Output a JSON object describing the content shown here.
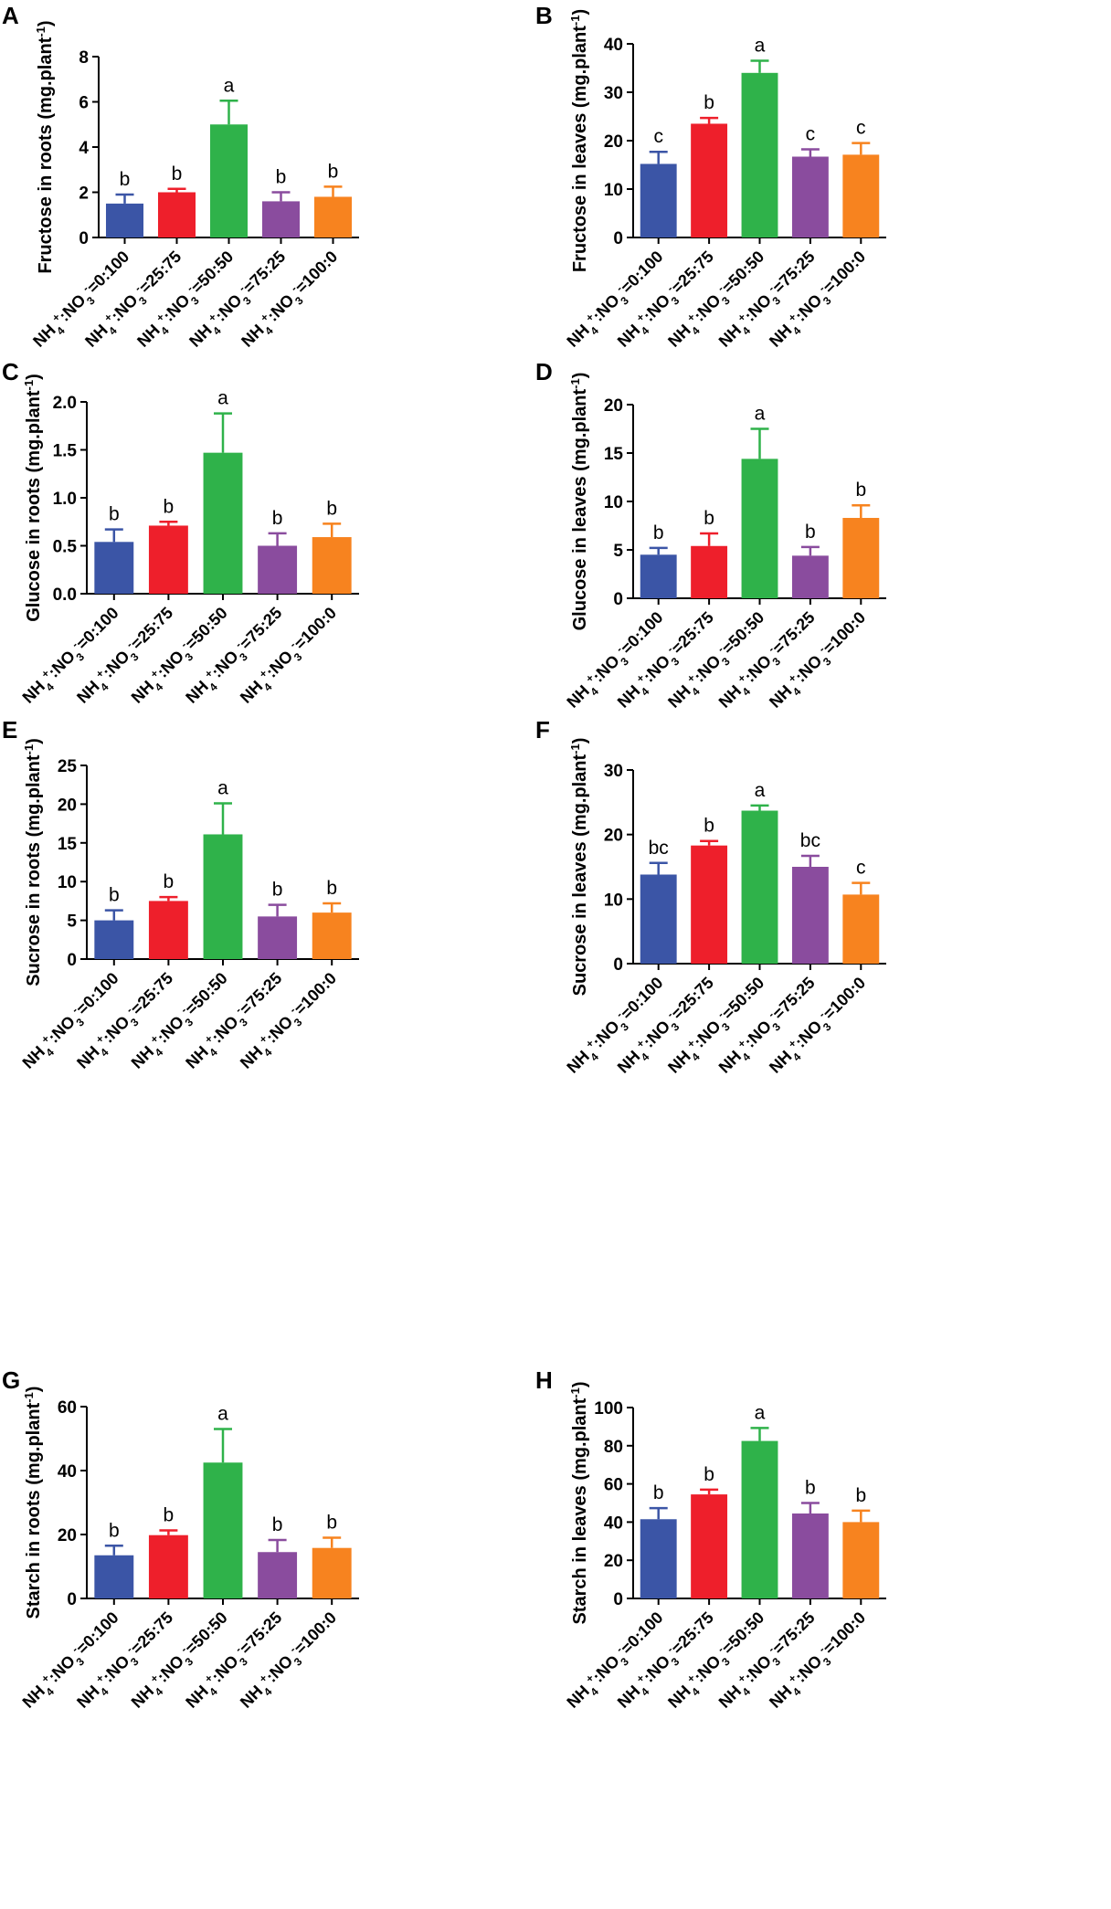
{
  "chart_data": [
    {
      "type": "bar",
      "panel": "A",
      "ylabel": "Fructose in roots (mg.plant⁻¹)",
      "ylim": [
        0,
        8
      ],
      "yticks": [
        0,
        2,
        4,
        6,
        8
      ],
      "ytick_labels": [
        "0",
        "2",
        "4",
        "6",
        "8"
      ],
      "values": [
        1.5,
        2.0,
        5.0,
        1.6,
        1.8
      ],
      "errors": [
        0.4,
        0.15,
        1.05,
        0.4,
        0.45
      ],
      "letters": [
        "b",
        "b",
        "a",
        "b",
        "b"
      ]
    },
    {
      "type": "bar",
      "panel": "B",
      "ylabel": "Fructose in leaves (mg.plant⁻¹)",
      "ylim": [
        0,
        40
      ],
      "yticks": [
        0,
        10,
        20,
        30,
        40
      ],
      "ytick_labels": [
        "0",
        "10",
        "20",
        "30",
        "40"
      ],
      "values": [
        15.2,
        23.5,
        34.0,
        16.7,
        17.1
      ],
      "errors": [
        2.5,
        1.2,
        2.5,
        1.5,
        2.4
      ],
      "letters": [
        "c",
        "b",
        "a",
        "c",
        "c"
      ]
    },
    {
      "type": "bar",
      "panel": "C",
      "ylabel": "Glucose in roots (mg.plant⁻¹)",
      "ylim": [
        0,
        2
      ],
      "yticks": [
        0,
        0.5,
        1,
        1.5,
        2
      ],
      "ytick_labels": [
        "0.0",
        "0.5",
        "1.0",
        "1.5",
        "2.0"
      ],
      "values": [
        0.54,
        0.71,
        1.47,
        0.5,
        0.59
      ],
      "errors": [
        0.13,
        0.04,
        0.41,
        0.13,
        0.14
      ],
      "letters": [
        "b",
        "b",
        "a",
        "b",
        "b"
      ]
    },
    {
      "type": "bar",
      "panel": "D",
      "ylabel": "Glucose in leaves (mg.plant⁻¹)",
      "ylim": [
        0,
        20
      ],
      "yticks": [
        0,
        5,
        10,
        15,
        20
      ],
      "ytick_labels": [
        "0",
        "5",
        "10",
        "15",
        "20"
      ],
      "values": [
        4.5,
        5.4,
        14.4,
        4.4,
        8.3
      ],
      "errors": [
        0.7,
        1.3,
        3.1,
        0.9,
        1.3
      ],
      "letters": [
        "b",
        "b",
        "a",
        "b",
        "b"
      ]
    },
    {
      "type": "bar",
      "panel": "E",
      "ylabel": "Sucrose in roots (mg.plant⁻¹)",
      "ylim": [
        0,
        25
      ],
      "yticks": [
        0,
        5,
        10,
        15,
        20,
        25
      ],
      "ytick_labels": [
        "0",
        "5",
        "10",
        "15",
        "20",
        "25"
      ],
      "values": [
        5.0,
        7.5,
        16.1,
        5.5,
        6.0
      ],
      "errors": [
        1.3,
        0.5,
        4.0,
        1.5,
        1.2
      ],
      "letters": [
        "b",
        "b",
        "a",
        "b",
        "b"
      ]
    },
    {
      "type": "bar",
      "panel": "F",
      "ylabel": "Sucrose in leaves (mg.plant⁻¹)",
      "ylim": [
        0,
        30
      ],
      "yticks": [
        0,
        10,
        20,
        30
      ],
      "ytick_labels": [
        "0",
        "10",
        "20",
        "30"
      ],
      "values": [
        13.8,
        18.3,
        23.7,
        15.0,
        10.7
      ],
      "errors": [
        1.8,
        0.7,
        0.8,
        1.7,
        1.8
      ],
      "letters": [
        "bc",
        "b",
        "a",
        "bc",
        "c"
      ]
    },
    {
      "type": "bar",
      "panel": "G",
      "ylabel": "Starch in roots (mg.plant⁻¹)",
      "ylim": [
        0,
        60
      ],
      "yticks": [
        0,
        20,
        40,
        60
      ],
      "ytick_labels": [
        "0",
        "20",
        "40",
        "60"
      ],
      "values": [
        13.5,
        19.8,
        42.5,
        14.5,
        15.8
      ],
      "errors": [
        3.0,
        1.5,
        10.5,
        3.8,
        3.2
      ],
      "letters": [
        "b",
        "b",
        "a",
        "b",
        "b"
      ]
    },
    {
      "type": "bar",
      "panel": "H",
      "ylabel": "Starch in leaves (mg.plant⁻¹)",
      "ylim": [
        0,
        100
      ],
      "yticks": [
        0,
        20,
        40,
        60,
        80,
        100
      ],
      "ytick_labels": [
        "0",
        "20",
        "40",
        "60",
        "80",
        "100"
      ],
      "values": [
        41.5,
        54.5,
        82.5,
        44.5,
        40.0
      ],
      "errors": [
        5.8,
        2.5,
        6.8,
        5.5,
        6.0
      ],
      "letters": [
        "b",
        "b",
        "a",
        "b",
        "b"
      ]
    }
  ],
  "categories": [
    {
      "prefix": "NH",
      "sub1": "4",
      "sup1": "+",
      "mid": ":NO",
      "sub2": "3",
      "sup2": "-",
      "ratio": "=0:100"
    },
    {
      "prefix": "NH",
      "sub1": "4",
      "sup1": "+",
      "mid": ":NO",
      "sub2": "3",
      "sup2": "-",
      "ratio": "=25:75"
    },
    {
      "prefix": "NH",
      "sub1": "4",
      "sup1": "+",
      "mid": ":NO",
      "sub2": "3",
      "sup2": "-",
      "ratio": "=50:50"
    },
    {
      "prefix": "NH",
      "sub1": "4",
      "sup1": "+",
      "mid": ":NO",
      "sub2": "3",
      "sup2": "-",
      "ratio": "=75:25"
    },
    {
      "prefix": "NH",
      "sub1": "4",
      "sup1": "+",
      "mid": ":NO",
      "sub2": "3",
      "sup2": "-",
      "ratio": "=100:0"
    }
  ],
  "colors": [
    "#3b55a6",
    "#ee1f2b",
    "#2fb24a",
    "#8a4c9e",
    "#f7831f"
  ]
}
